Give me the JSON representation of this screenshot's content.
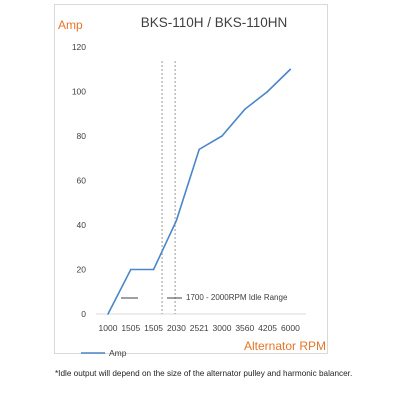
{
  "chart_data": {
    "type": "line",
    "title": "BKS-110H / BKS-110HN",
    "ylabel": "Amp",
    "xlabel": "Alternator RPM",
    "categories": [
      "1000",
      "1505",
      "1505",
      "2030",
      "2521",
      "3000",
      "3560",
      "4205",
      "6000"
    ],
    "series": [
      {
        "name": "Amp",
        "values": [
          0,
          20,
          20,
          42,
          74,
          80,
          92,
          100,
          110
        ],
        "color": "#4a86c8"
      }
    ],
    "ylim": [
      0,
      120
    ],
    "yticks": [
      0,
      20,
      40,
      60,
      80,
      100,
      120
    ],
    "grid": false,
    "legend": "bottom-left",
    "idle_range": {
      "label": "1700 - 2000RPM Idle Range",
      "start_rpm": 1700,
      "end_rpm": 2000
    }
  },
  "footnote": "*Idle output will depend on the size of the alternator pulley and harmonic balancer."
}
